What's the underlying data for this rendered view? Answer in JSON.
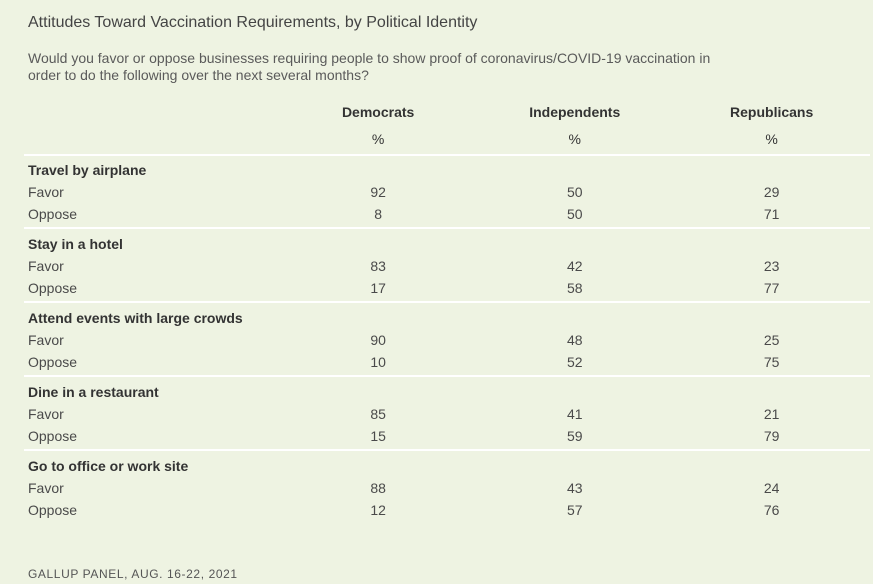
{
  "title": "Attitudes Toward Vaccination Requirements, by Political Identity",
  "subtitle": "Would you favor or oppose businesses requiring people to show proof of coronavirus/COVID-19 vaccination in order to do the following over the next several months?",
  "footer": "GALLUP PANEL, AUG. 16-22, 2021",
  "chart_data": {
    "type": "table",
    "title": "Attitudes Toward Vaccination Requirements, by Political Identity",
    "columns": [
      "Democrats",
      "Independents",
      "Republicans"
    ],
    "unit": "%",
    "groups": [
      {
        "label": "Travel by airplane",
        "rows": [
          {
            "label": "Favor",
            "values": [
              "92",
              "50",
              "29"
            ]
          },
          {
            "label": "Oppose",
            "values": [
              "8",
              "50",
              "71"
            ]
          }
        ]
      },
      {
        "label": "Stay in a hotel",
        "rows": [
          {
            "label": "Favor",
            "values": [
              "83",
              "42",
              "23"
            ]
          },
          {
            "label": "Oppose",
            "values": [
              "17",
              "58",
              "77"
            ]
          }
        ]
      },
      {
        "label": "Attend events with large crowds",
        "rows": [
          {
            "label": "Favor",
            "values": [
              "90",
              "48",
              "25"
            ]
          },
          {
            "label": "Oppose",
            "values": [
              "10",
              "52",
              "75"
            ]
          }
        ]
      },
      {
        "label": "Dine in a restaurant",
        "rows": [
          {
            "label": "Favor",
            "values": [
              "85",
              "41",
              "21"
            ]
          },
          {
            "label": "Oppose",
            "values": [
              "15",
              "59",
              "79"
            ]
          }
        ]
      },
      {
        "label": "Go to office or work site",
        "rows": [
          {
            "label": "Favor",
            "values": [
              "88",
              "43",
              "24"
            ]
          },
          {
            "label": "Oppose",
            "values": [
              "12",
              "57",
              "76"
            ]
          }
        ]
      }
    ]
  }
}
